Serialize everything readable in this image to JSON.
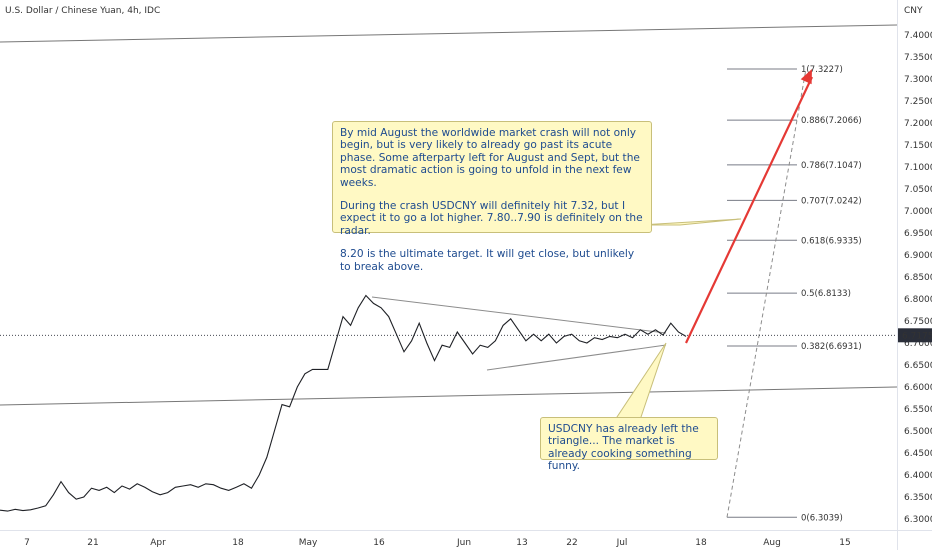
{
  "header": {
    "symbol": "U.S. Dollar / Chinese Yuan, 4h, IDC",
    "currency": "CNY"
  },
  "price_badge": {
    "value": "6.7175",
    "color": "#2a2e39"
  },
  "notes": {
    "main": {
      "p1": "By mid August the worldwide market crash will not only begin, but is very likely to already go past its acute phase. Some afterparty left for August and Sept, but the most dramatic action is going to unfold in the next few weeks.",
      "p2": "During the crash USDCNY will definitely hit 7.32, but I expect it to go a lot higher. 7.80..7.90 is definitely on the radar.",
      "p3": "8.20 is the ultimate target. It will get close, but unlikely to break above."
    },
    "lower": {
      "text": "USDCNY has already left the triangle... The market is already cooking something funny."
    }
  },
  "chart_data": {
    "type": "line",
    "title": "U.S. Dollar / Chinese Yuan, 4h, IDC",
    "ylabel": "CNY",
    "ylim": [
      6.27,
      7.45
    ],
    "y_ticks": [
      "7.4000",
      "7.3500",
      "7.3000",
      "7.2500",
      "7.2000",
      "7.1500",
      "7.1000",
      "7.0500",
      "7.0000",
      "6.9500",
      "6.9000",
      "6.8500",
      "6.8000",
      "6.7500",
      "6.7000",
      "6.6500",
      "6.6000",
      "6.5500",
      "6.5000",
      "6.4500",
      "6.4000",
      "6.3500",
      "6.3000"
    ],
    "x_ticks": [
      "7",
      "21",
      "Apr",
      "18",
      "May",
      "16",
      "Jun",
      "13",
      "22",
      "Jul",
      "18",
      "Aug",
      "15"
    ],
    "series": [
      {
        "values": [
          6.32,
          6.318,
          6.322,
          6.319,
          6.321,
          6.325,
          6.33,
          6.355,
          6.385,
          6.36,
          6.345,
          6.35,
          6.37,
          6.365,
          6.372,
          6.36,
          6.375,
          6.368,
          6.38,
          6.372,
          6.362,
          6.355,
          6.36,
          6.372,
          6.375,
          6.378,
          6.372,
          6.38,
          6.378,
          6.37,
          6.365,
          6.372,
          6.38,
          6.37,
          6.4,
          6.44,
          6.5,
          6.56,
          6.555,
          6.6,
          6.63,
          6.64,
          6.64,
          6.64,
          6.7,
          6.76,
          6.74,
          6.78,
          6.808,
          6.79,
          6.78,
          6.76,
          6.72,
          6.68,
          6.705,
          6.745,
          6.7,
          6.66,
          6.695,
          6.69,
          6.725,
          6.7,
          6.675,
          6.695,
          6.69,
          6.705,
          6.74,
          6.755,
          6.73,
          6.705,
          6.72,
          6.705,
          6.72,
          6.7,
          6.715,
          6.72,
          6.705,
          6.7,
          6.712,
          6.708,
          6.715,
          6.712,
          6.72,
          6.712,
          6.73,
          6.72,
          6.73,
          6.718,
          6.745,
          6.725,
          6.715
        ]
      }
    ],
    "fib_levels": [
      {
        "label": "1(7.3227)",
        "value": 7.3227
      },
      {
        "label": "0.886(7.2066)",
        "value": 7.2066
      },
      {
        "label": "0.786(7.1047)",
        "value": 7.1047
      },
      {
        "label": "0.707(7.0242)",
        "value": 7.0242
      },
      {
        "label": "0.618(6.9335)",
        "value": 6.9335
      },
      {
        "label": "0.5(6.8133)",
        "value": 6.8133
      },
      {
        "label": "0.382(6.6931)",
        "value": 6.6931
      },
      {
        "label": "0(6.3039)",
        "value": 6.3039
      }
    ],
    "current_price": 6.7175,
    "projection_target": 7.3227
  }
}
